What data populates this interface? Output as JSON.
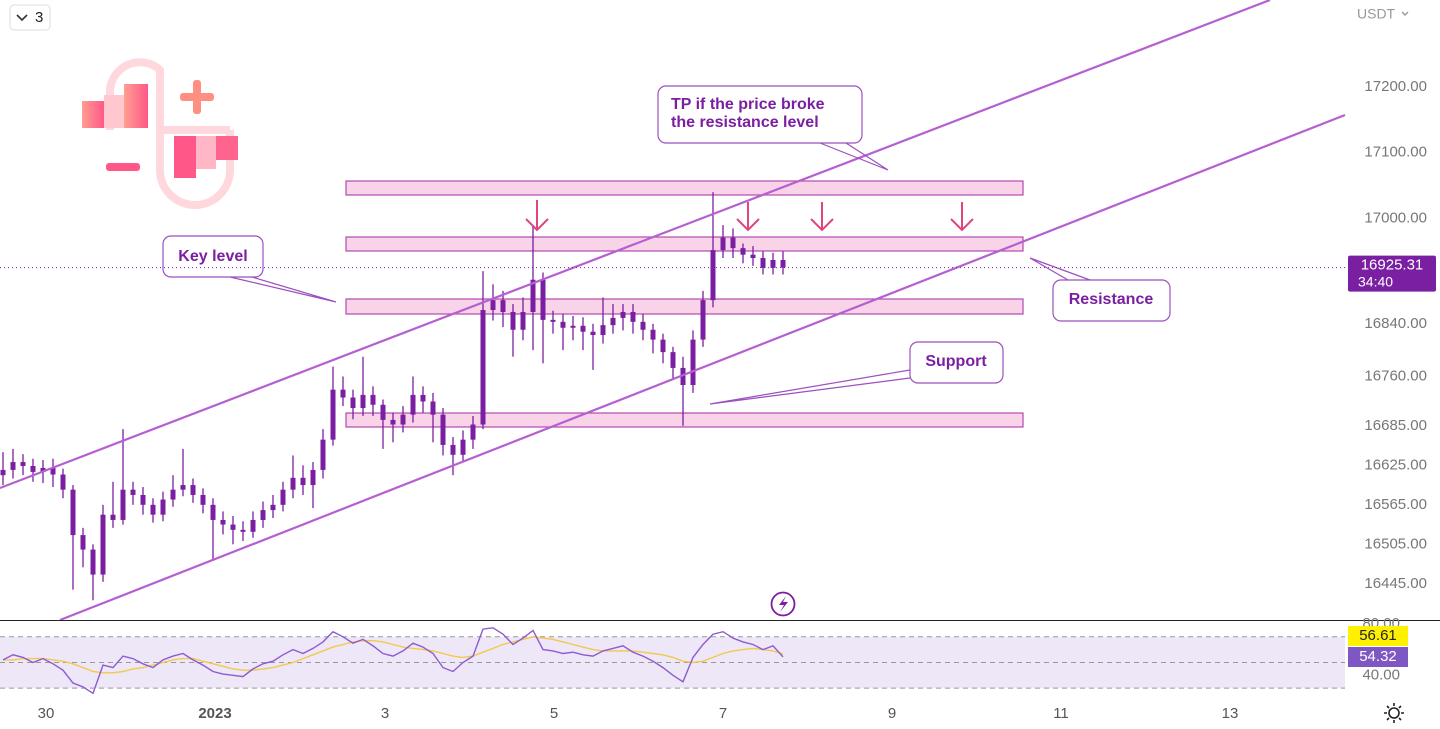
{
  "header": {
    "interval_count": "3",
    "currency": "USDT"
  },
  "chart_data": {
    "type": "candlestick",
    "color": "#7b1fa2",
    "open": [
      16610,
      16618,
      16630,
      16624,
      16615,
      16621,
      16611,
      16588,
      16519,
      16497,
      16459,
      16550,
      16542,
      16588,
      16580,
      16565,
      16550,
      16573,
      16588,
      16595,
      16580,
      16565,
      16542,
      16535,
      16527,
      16524,
      16542,
      16557,
      16565,
      16588,
      16606,
      16595,
      16618,
      16664,
      16740,
      16728,
      16712,
      16732,
      16717,
      16694,
      16687,
      16702,
      16732,
      16722,
      16702,
      16656,
      16641,
      16664,
      16687,
      16861,
      16876,
      16858,
      16831,
      16858,
      16907,
      16846,
      16843,
      16834,
      16837,
      16828,
      16823,
      16838,
      16849,
      16858,
      16843,
      16831,
      16816,
      16797,
      16773,
      16747,
      16816,
      16876,
      16952,
      16971,
      16955,
      16945,
      16940,
      16925,
      16937
    ],
    "high": [
      16645,
      16650,
      16642,
      16635,
      16633,
      16635,
      16620,
      16595,
      16530,
      16505,
      16565,
      16600,
      16680,
      16600,
      16592,
      16575,
      16585,
      16610,
      16650,
      16605,
      16590,
      16575,
      16555,
      16548,
      16540,
      16555,
      16570,
      16580,
      16600,
      16640,
      16625,
      16630,
      16680,
      16775,
      16760,
      16740,
      16790,
      16745,
      16725,
      16705,
      16715,
      16760,
      16745,
      16735,
      16712,
      16668,
      16678,
      16700,
      16920,
      16900,
      16890,
      16870,
      16880,
      16990,
      16918,
      16860,
      16855,
      16852,
      16850,
      16840,
      16880,
      16870,
      16870,
      16870,
      16855,
      16840,
      16825,
      16805,
      16790,
      16830,
      16890,
      17040,
      16990,
      16985,
      16962,
      16958,
      16950,
      16948,
      16950
    ],
    "low": [
      16595,
      16605,
      16610,
      16600,
      16598,
      16592,
      16575,
      16436,
      16470,
      16420,
      16448,
      16530,
      16535,
      16565,
      16550,
      16538,
      16540,
      16562,
      16578,
      16568,
      16552,
      16480,
      16520,
      16505,
      16510,
      16515,
      16530,
      16545,
      16555,
      16575,
      16580,
      16560,
      16605,
      16655,
      16715,
      16695,
      16700,
      16700,
      16650,
      16660,
      16675,
      16690,
      16705,
      16660,
      16640,
      16610,
      16630,
      16650,
      16680,
      16845,
      16835,
      16790,
      16815,
      16800,
      16780,
      16825,
      16800,
      16815,
      16800,
      16770,
      16810,
      16825,
      16830,
      16825,
      16815,
      16795,
      16780,
      16755,
      16685,
      16735,
      16805,
      16865,
      16940,
      16940,
      16932,
      16928,
      16915,
      16915,
      16915
    ],
    "close": [
      16618,
      16630,
      16624,
      16615,
      16621,
      16611,
      16588,
      16519,
      16497,
      16459,
      16550,
      16542,
      16588,
      16580,
      16565,
      16550,
      16573,
      16588,
      16595,
      16580,
      16565,
      16542,
      16535,
      16527,
      16524,
      16542,
      16557,
      16565,
      16588,
      16606,
      16595,
      16618,
      16664,
      16740,
      16728,
      16712,
      16732,
      16717,
      16694,
      16687,
      16702,
      16732,
      16722,
      16702,
      16656,
      16641,
      16664,
      16687,
      16861,
      16876,
      16858,
      16831,
      16858,
      16907,
      16846,
      16843,
      16834,
      16837,
      16828,
      16823,
      16838,
      16849,
      16858,
      16843,
      16831,
      16816,
      16797,
      16773,
      16747,
      16816,
      16876,
      16952,
      16971,
      16955,
      16945,
      16940,
      16925,
      16937,
      16925.31
    ],
    "ylim": [
      16390,
      17332
    ],
    "yticks": [
      {
        "value": 17200,
        "label": "17200.00"
      },
      {
        "value": 17100,
        "label": "17100.00"
      },
      {
        "value": 17000,
        "label": "17000.00"
      },
      {
        "value": 16840,
        "label": "16840.00"
      },
      {
        "value": 16760,
        "label": "16760.00"
      },
      {
        "value": 16685,
        "label": "16685.00"
      },
      {
        "value": 16625,
        "label": "16625.00"
      },
      {
        "value": 16565,
        "label": "16565.00"
      },
      {
        "value": 16505,
        "label": "16505.00"
      },
      {
        "value": 16445,
        "label": "16445.00"
      }
    ],
    "xlim": [
      -0.3,
      134.2
    ],
    "xticks": [
      {
        "value": 4.3,
        "label": "30"
      },
      {
        "value": 21.2,
        "label": "2023"
      },
      {
        "value": 38.2,
        "label": "3"
      },
      {
        "value": 55.1,
        "label": "5"
      },
      {
        "value": 72.0,
        "label": "7"
      },
      {
        "value": 88.9,
        "label": "9"
      },
      {
        "value": 105.8,
        "label": "11"
      },
      {
        "value": 122.7,
        "label": "13"
      }
    ],
    "countdown": "34:40",
    "annotations": {
      "tp": [
        "TP if the price broke",
        "the resistance level"
      ],
      "key_level": "Key level",
      "resistance": "Resistance",
      "support": "Support"
    },
    "rsi": {
      "color": "#8e5bd0",
      "ma_color": "#f2c94c",
      "values": [
        52,
        56,
        54,
        50,
        53,
        49,
        44,
        34,
        31,
        26,
        48,
        46,
        55,
        53,
        49,
        46,
        52,
        55,
        57,
        52,
        48,
        43,
        41,
        40,
        39,
        45,
        49,
        51,
        56,
        60,
        57,
        61,
        66,
        74,
        70,
        65,
        68,
        63,
        57,
        55,
        59,
        65,
        62,
        57,
        46,
        43,
        50,
        55,
        76,
        77,
        72,
        64,
        69,
        75,
        60,
        59,
        57,
        58,
        56,
        55,
        59,
        61,
        63,
        58,
        55,
        51,
        46,
        40,
        35,
        54,
        64,
        72,
        74,
        69,
        66,
        64,
        60,
        63,
        54.32
      ],
      "ma": [
        52,
        52,
        53,
        53,
        53,
        52,
        51,
        49,
        46,
        43,
        42,
        42,
        43,
        45,
        46,
        48,
        50,
        52,
        53,
        53,
        51,
        49,
        47,
        45,
        44,
        44,
        45,
        46,
        48,
        50,
        53,
        56,
        59,
        62,
        64,
        66,
        67,
        67,
        66,
        64,
        62,
        61,
        60,
        59,
        57,
        55,
        54,
        55,
        58,
        61,
        64,
        66,
        68,
        70,
        69,
        68,
        66,
        64,
        62,
        60,
        59,
        59,
        59,
        59,
        58,
        57,
        56,
        54,
        51,
        50,
        51,
        54,
        57,
        59,
        60,
        61,
        60,
        59,
        56.61
      ],
      "ylim": [
        20.8,
        82.3
      ],
      "yticks": [
        {
          "value": 80,
          "label": "80.00"
        },
        {
          "value": 40,
          "label": "40.00"
        }
      ],
      "levels": [
        70,
        50,
        30
      ]
    }
  }
}
